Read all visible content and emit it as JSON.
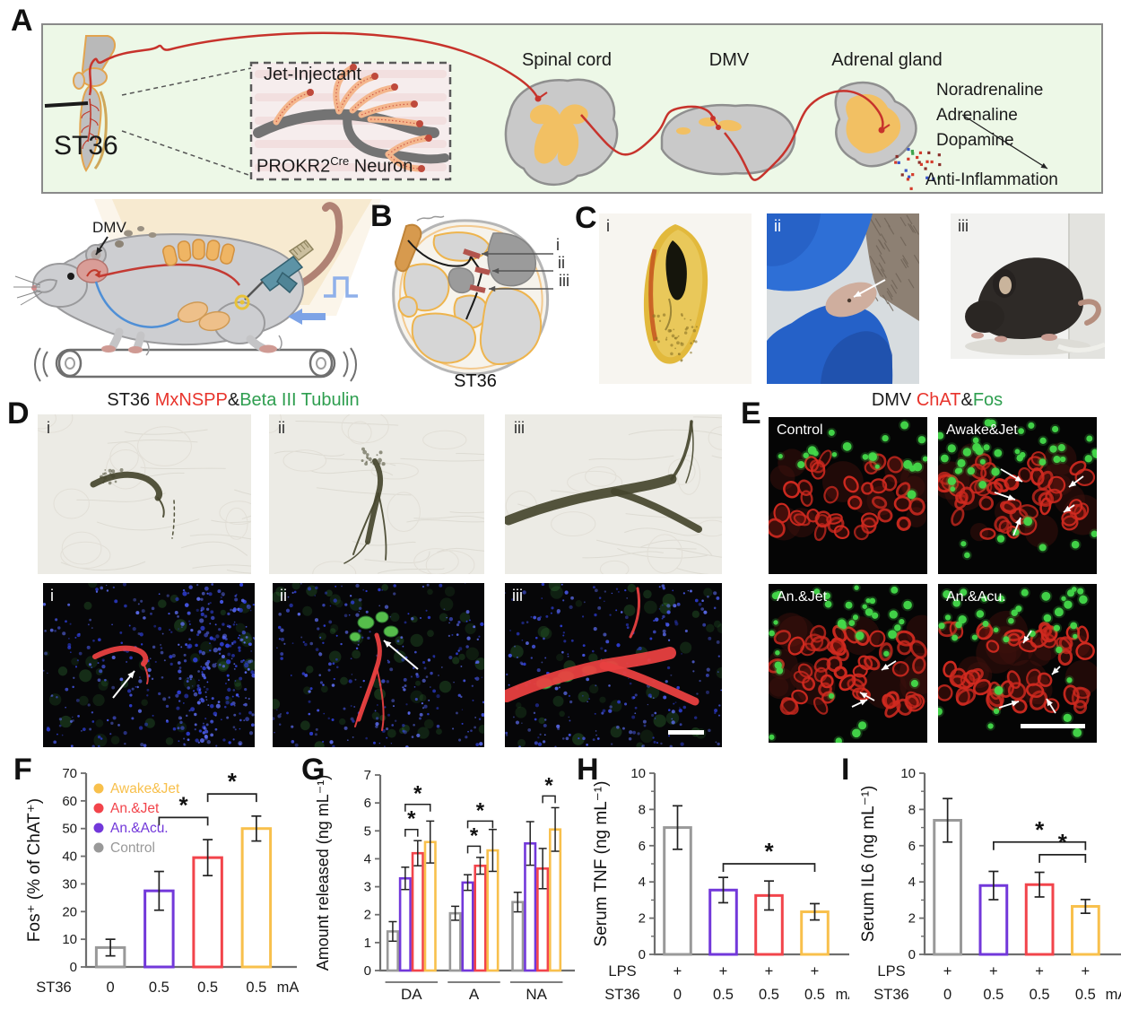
{
  "colors": {
    "awake_jet": "#f8c04c",
    "an_jet": "#f2444b",
    "an_acu": "#7238da",
    "control": "#999999",
    "red_label": "#e8342c",
    "green_label": "#2e9e4f",
    "schematic_bg": "#edf8e7",
    "nerve_red": "#c7332c"
  },
  "panels": {
    "A": {
      "letter": "A",
      "acupoint": "ST36",
      "inset": {
        "title": "Jet-Injectant",
        "neuron_base": "PROKR2",
        "neuron_sup": "Cre",
        "neuron_rest": " Neuron"
      },
      "structures": [
        "Spinal cord",
        "DMV",
        "Adrenal gland"
      ],
      "molecules": [
        "Noradrenaline",
        "Adrenaline",
        "Dopamine"
      ],
      "outcome": "Anti-Inflammation"
    },
    "mouse": {
      "dmv": "DMV"
    },
    "B": {
      "letter": "B",
      "markers": [
        "i",
        "ii",
        "iii"
      ],
      "caption": "ST36"
    },
    "C": {
      "letter": "C",
      "markers": [
        "i",
        "ii",
        "iii"
      ]
    },
    "D": {
      "letter": "D",
      "title": {
        "prefix": "ST36 ",
        "red": "MxNSPP",
        "amp": "&",
        "green": "Beta III Tubulin"
      },
      "markers": [
        "i",
        "ii",
        "iii"
      ]
    },
    "E": {
      "letter": "E",
      "title": {
        "prefix": "DMV ",
        "red": "ChAT",
        "amp": "&",
        "green": "Fos"
      },
      "conditions": [
        "Control",
        "Awake&Jet",
        "An.&Jet",
        "An.&Acu."
      ]
    },
    "F": {
      "letter": "F"
    },
    "G": {
      "letter": "G"
    },
    "H": {
      "letter": "H"
    },
    "I": {
      "letter": "I"
    }
  },
  "chart_data": [
    {
      "id": "F",
      "type": "bar",
      "ylabel": "Fos⁺ (% of ChAT⁺)",
      "ylim": [
        0,
        70
      ],
      "ytick_step": 10,
      "series": [
        {
          "name": "Control",
          "color": "#999999",
          "value": 7,
          "error": 3
        },
        {
          "name": "An.&Acu.",
          "color": "#7238da",
          "value": 27.5,
          "error": 7
        },
        {
          "name": "An.&Jet",
          "color": "#f2444b",
          "value": 39.5,
          "error": 6.5
        },
        {
          "name": "Awake&Jet",
          "color": "#f8c04c",
          "value": 50,
          "error": 4.5
        }
      ],
      "x_rows": [
        {
          "label": "ST36",
          "cells": [
            "0",
            "0.5",
            "0.5",
            "0.5"
          ],
          "suffix": "mA"
        }
      ],
      "legend": [
        "Awake&Jet",
        "An.&Jet",
        "An.&Acu.",
        "Control"
      ],
      "legend_colors": [
        "#f8c04c",
        "#f2444b",
        "#7238da",
        "#999999"
      ],
      "significance": [
        {
          "from": 1,
          "to": 2,
          "height": 54,
          "label": "*"
        },
        {
          "from": 2,
          "to": 3,
          "height": 62.5,
          "label": "*"
        }
      ]
    },
    {
      "id": "G",
      "type": "grouped-bar",
      "ylabel": "Amount released (ng mL⁻¹)",
      "ylim": [
        0,
        7
      ],
      "ytick_step": 1,
      "groups": [
        "DA",
        "A",
        "NA"
      ],
      "series": [
        {
          "name": "Control",
          "color": "#999999",
          "values": [
            1.4,
            2.05,
            2.45
          ],
          "errors": [
            0.35,
            0.25,
            0.35
          ]
        },
        {
          "name": "An.&Acu.",
          "color": "#7238da",
          "values": [
            3.3,
            3.15,
            4.55
          ],
          "errors": [
            0.4,
            0.28,
            0.78
          ]
        },
        {
          "name": "An.&Jet",
          "color": "#f2444b",
          "values": [
            4.2,
            3.75,
            3.65
          ],
          "errors": [
            0.45,
            0.3,
            0.72
          ]
        },
        {
          "name": "Awake&Jet",
          "color": "#f8c04c",
          "values": [
            4.6,
            4.3,
            5.05
          ],
          "errors": [
            0.75,
            0.75,
            0.78
          ]
        }
      ],
      "significance": [
        {
          "group": 0,
          "from": 1,
          "to": 2,
          "height": 5.05,
          "label": "*"
        },
        {
          "group": 0,
          "from": 1,
          "to": 3,
          "height": 5.95,
          "label": "*"
        },
        {
          "group": 1,
          "from": 1,
          "to": 2,
          "height": 4.45,
          "label": "*"
        },
        {
          "group": 1,
          "from": 1,
          "to": 3,
          "height": 5.35,
          "label": "*"
        },
        {
          "group": 2,
          "from": 2,
          "to": 3,
          "height": 6.25,
          "label": "*"
        }
      ]
    },
    {
      "id": "H",
      "type": "bar",
      "ylabel": "Serum TNF (ng mL⁻¹)",
      "ylim": [
        0,
        10
      ],
      "ytick_step": 2,
      "minor_step": 1,
      "series": [
        {
          "name": "Control",
          "color": "#999999",
          "value": 7.0,
          "error": 1.2
        },
        {
          "name": "An.&Acu.",
          "color": "#7238da",
          "value": 3.55,
          "error": 0.7
        },
        {
          "name": "An.&Jet",
          "color": "#f2444b",
          "value": 3.25,
          "error": 0.8
        },
        {
          "name": "Awake&Jet",
          "color": "#f8c04c",
          "value": 2.35,
          "error": 0.45
        }
      ],
      "x_rows": [
        {
          "label": "LPS",
          "cells": [
            "+",
            "+",
            "+",
            "+"
          ]
        },
        {
          "label": "ST36",
          "cells": [
            "0",
            "0.5",
            "0.5",
            "0.5"
          ],
          "suffix": "mA"
        }
      ],
      "significance": [
        {
          "from": 1,
          "to": 3,
          "height": 5.0,
          "label": "*"
        }
      ]
    },
    {
      "id": "I",
      "type": "bar",
      "ylabel": "Serum IL6 (ng mL⁻¹)",
      "ylim": [
        0,
        10
      ],
      "ytick_step": 2,
      "minor_step": 1,
      "series": [
        {
          "name": "Control",
          "color": "#999999",
          "value": 7.4,
          "error": 1.2
        },
        {
          "name": "An.&Acu.",
          "color": "#7238da",
          "value": 3.8,
          "error": 0.78
        },
        {
          "name": "An.&Jet",
          "color": "#f2444b",
          "value": 3.85,
          "error": 0.68
        },
        {
          "name": "Awake&Jet",
          "color": "#f8c04c",
          "value": 2.65,
          "error": 0.38
        }
      ],
      "x_rows": [
        {
          "label": "LPS",
          "cells": [
            "+",
            "+",
            "+",
            "+"
          ]
        },
        {
          "label": "ST36",
          "cells": [
            "0",
            "0.5",
            "0.5",
            "0.5"
          ],
          "suffix": "mA"
        }
      ],
      "significance": [
        {
          "from": 1,
          "to": 3,
          "height": 6.2,
          "label": "*"
        },
        {
          "from": 2,
          "to": 3,
          "height": 5.5,
          "label": "*"
        }
      ]
    }
  ]
}
